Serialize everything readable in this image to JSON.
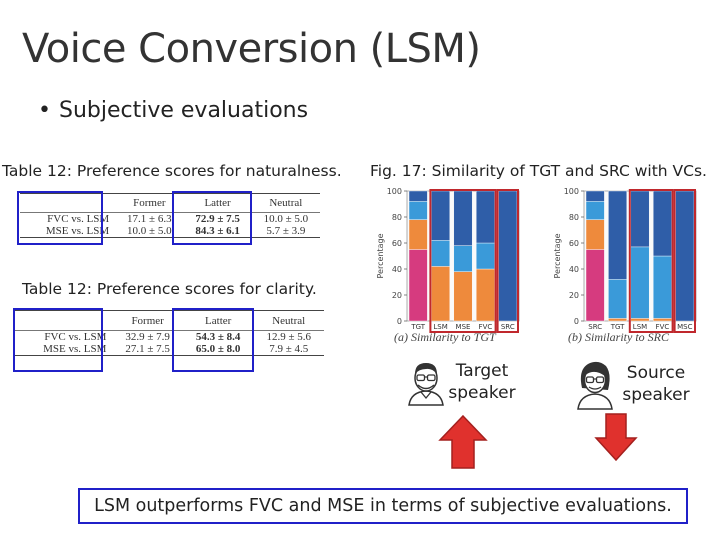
{
  "slide": {
    "title": "Voice Conversion (LSM)",
    "bullet": "Subjective evaluations",
    "bullet_glyph": "•"
  },
  "table_naturalness": {
    "caption": "Table 12: Preference scores for naturalness.",
    "headers": [
      "",
      "Former",
      "Latter",
      "Neutral"
    ],
    "rows": [
      {
        "name": "FVC vs. LSM",
        "former": "17.1 ± 6.3",
        "latter": "72.9 ± 7.5",
        "neutral": "10.0 ± 5.0"
      },
      {
        "name": "MSE vs. LSM",
        "former": "10.0 ± 5.0",
        "latter": "84.3 ± 6.1",
        "neutral": "5.7 ± 3.9"
      }
    ]
  },
  "table_clarity": {
    "caption": "Table 12: Preference scores for clarity.",
    "headers": [
      "",
      "Former",
      "Latter",
      "Neutral"
    ],
    "rows": [
      {
        "name": "FVC vs. LSM",
        "former": "32.9 ± 7.9",
        "latter": "54.3 ± 8.4",
        "neutral": "12.9 ± 5.6"
      },
      {
        "name": "MSE vs. LSM",
        "former": "27.1 ± 7.5",
        "latter": "65.0 ± 8.0",
        "neutral": "7.9 ± 4.5"
      }
    ]
  },
  "figure": {
    "caption": "Fig. 17: Similarity of TGT and SRC with VCs.",
    "colors": {
      "pink": "#d63b7f",
      "orange": "#ee8a3c",
      "light_blue": "#3a9ad9",
      "dark_blue": "#2f5ea8",
      "highlight": "#c0282d"
    }
  },
  "chart_data": [
    {
      "type": "bar",
      "stacked": true,
      "caption": "(a) Similarity to TGT",
      "ylabel": "Percentage",
      "ylim": [
        0,
        100
      ],
      "yticks": [
        0,
        20,
        40,
        60,
        80,
        100
      ],
      "categories": [
        "TGT",
        "LSM",
        "MSE",
        "FVC",
        "SRC"
      ],
      "series": [
        {
          "color": "#d63b7f",
          "values": [
            55,
            0,
            0,
            0,
            0
          ]
        },
        {
          "color": "#ee8a3c",
          "values": [
            23,
            42,
            38,
            40,
            0
          ]
        },
        {
          "color": "#3a9ad9",
          "values": [
            14,
            20,
            20,
            20,
            0
          ]
        },
        {
          "color": "#2f5ea8",
          "values": [
            8,
            38,
            42,
            40,
            100
          ]
        }
      ]
    },
    {
      "type": "bar",
      "stacked": true,
      "caption": "(b) Similarity to SRC",
      "ylabel": "Percentage",
      "ylim": [
        0,
        100
      ],
      "yticks": [
        0,
        20,
        40,
        60,
        80,
        100
      ],
      "categories": [
        "SRC",
        "TGT",
        "LSM",
        "FVC",
        "MSC"
      ],
      "series": [
        {
          "color": "#d63b7f",
          "values": [
            55,
            0,
            0,
            0,
            0
          ]
        },
        {
          "color": "#ee8a3c",
          "values": [
            23,
            2,
            2,
            2,
            0
          ]
        },
        {
          "color": "#3a9ad9",
          "values": [
            14,
            30,
            55,
            48,
            0
          ]
        },
        {
          "color": "#2f5ea8",
          "values": [
            8,
            68,
            43,
            50,
            100
          ]
        }
      ]
    }
  ],
  "speakers": {
    "target": {
      "line1": "Target",
      "line2": "speaker",
      "icon": "man-with-glasses-icon",
      "arrow": "up"
    },
    "source": {
      "line1": "Source",
      "line2": "speaker",
      "icon": "woman-with-glasses-icon",
      "arrow": "down"
    }
  },
  "conclusion": "LSM outperforms FVC and MSE in terms of subjective evaluations."
}
